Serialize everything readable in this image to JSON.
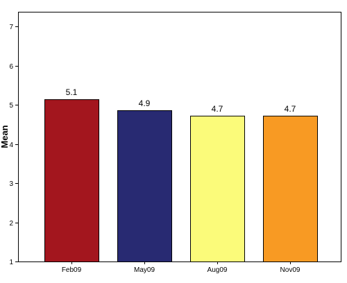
{
  "chart_data": {
    "type": "bar",
    "title": "",
    "xlabel": "",
    "ylabel": "Mean",
    "ylim": [
      1,
      7
    ],
    "yticks": [
      1,
      2,
      3,
      4,
      5,
      6,
      7
    ],
    "grid": false,
    "categories": [
      "Feb09",
      "May09",
      "Aug09",
      "Nov09"
    ],
    "values": [
      5.14,
      4.86,
      4.72,
      4.72
    ],
    "data_labels": [
      "5.1",
      "4.9",
      "4.7",
      "4.7"
    ],
    "colors": [
      "#a3161e",
      "#282a72",
      "#fbfb7a",
      "#f89a23"
    ]
  }
}
